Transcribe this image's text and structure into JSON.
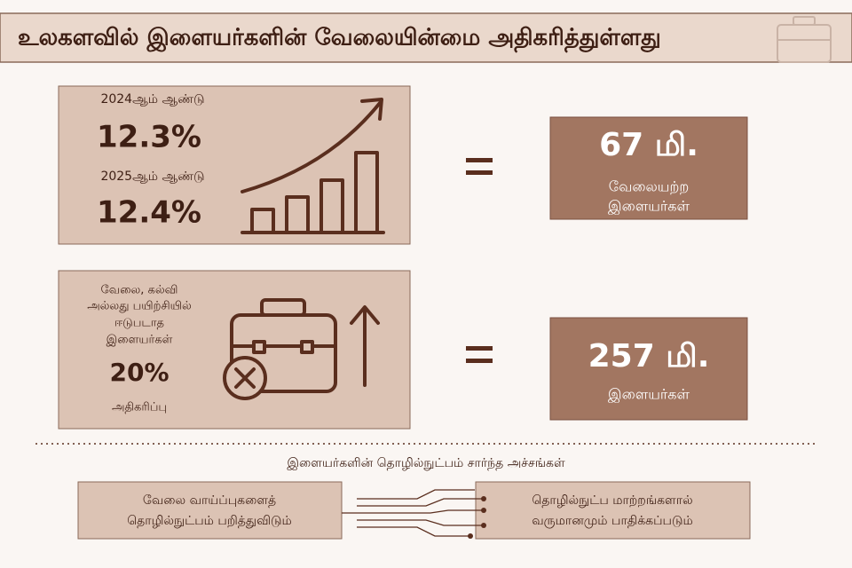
{
  "header": {
    "title": "உலகளவில் இளையர்களின் வேலையின்மை அதிகரித்துள்ளது"
  },
  "rate_panel": {
    "year_1": "2024ஆம் ஆண்டு",
    "rate_1": "12.3%",
    "year_2": "2025ஆம் ஆண்டு",
    "rate_2": "12.4%"
  },
  "rate_result": {
    "number": "67 மி.",
    "lines": [
      "வேலையற்ற",
      "இளையர்கள்"
    ]
  },
  "neet_panel": {
    "lines": [
      "வேலை, கல்வி",
      "அல்லது பயிற்சியில்",
      "ஈடுபடாத",
      "இளையர்கள்"
    ],
    "increase": "20%",
    "increase_label": "அதிகரிப்பு"
  },
  "neet_result": {
    "number": "257 மி.",
    "lines": [
      "இளையர்கள்"
    ]
  },
  "fears": {
    "heading": "இளையர்களின் தொழில்நுட்பம் சார்ந்த அச்சங்கள்",
    "left": [
      "வேலை வாய்ப்புகளைத்",
      "தொழில்நுட்பம் பறித்துவிடும்"
    ],
    "right": [
      "தொழில்நுட்ப மாற்றங்களால்",
      "வருமானமும் பாதிக்கப்படும்"
    ]
  }
}
